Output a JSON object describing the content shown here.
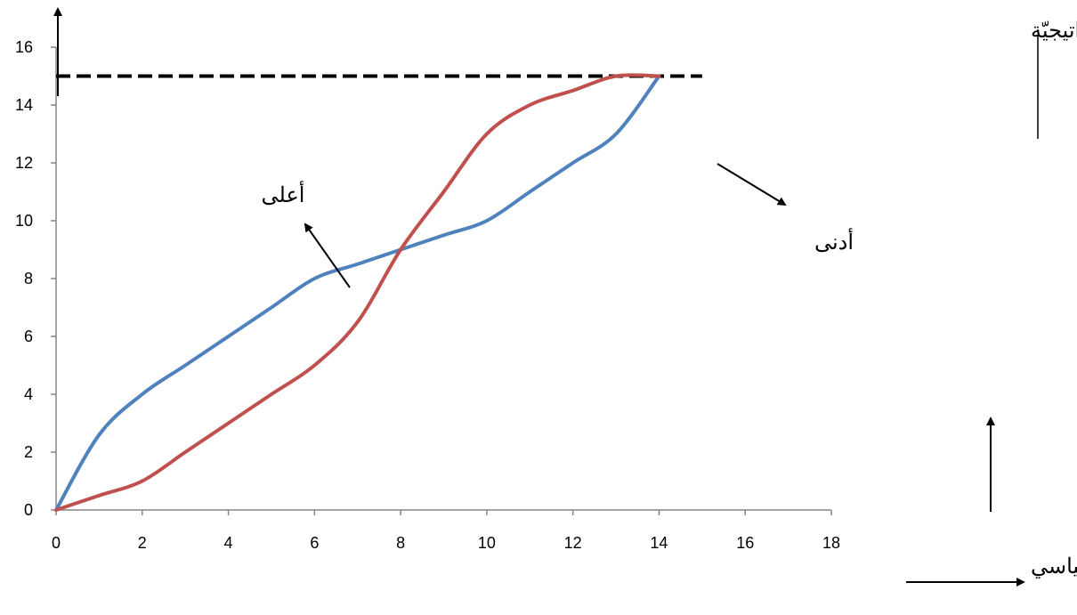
{
  "chart_data": {
    "type": "line",
    "title": "",
    "xlabel": "النفوذ السياسي",
    "ylabel": "المصالح الاستراتيجيّة",
    "xlim": [
      0,
      18
    ],
    "ylim": [
      0,
      16
    ],
    "x_ticks": [
      0,
      2,
      4,
      6,
      8,
      10,
      12,
      14,
      16,
      18
    ],
    "y_ticks": [
      0,
      2,
      4,
      6,
      8,
      10,
      12,
      14,
      16
    ],
    "grid": false,
    "legend": "none",
    "series": [
      {
        "color": "#4F81BD",
        "x": [
          0,
          1,
          2,
          3,
          4,
          5,
          6,
          7,
          8,
          9,
          10,
          11,
          12,
          13,
          14
        ],
        "y": [
          0,
          2.6,
          4,
          5,
          6,
          7,
          8,
          8.5,
          9,
          9.5,
          10,
          11,
          12,
          13,
          15
        ]
      },
      {
        "color": "#C0504D",
        "x": [
          0,
          1,
          2,
          3,
          4,
          5,
          6,
          7,
          8,
          9,
          10,
          11,
          12,
          13,
          14
        ],
        "y": [
          0,
          0.5,
          1,
          2,
          3,
          4,
          5,
          6.5,
          9,
          11,
          13,
          14,
          14.5,
          15,
          15
        ]
      }
    ],
    "reference_line": {
      "y": 15,
      "x_range": [
        0,
        15
      ],
      "style": "dashed",
      "color": "#000000"
    },
    "annotations": {
      "higher": "أعلى",
      "lower": "أدنى"
    }
  }
}
